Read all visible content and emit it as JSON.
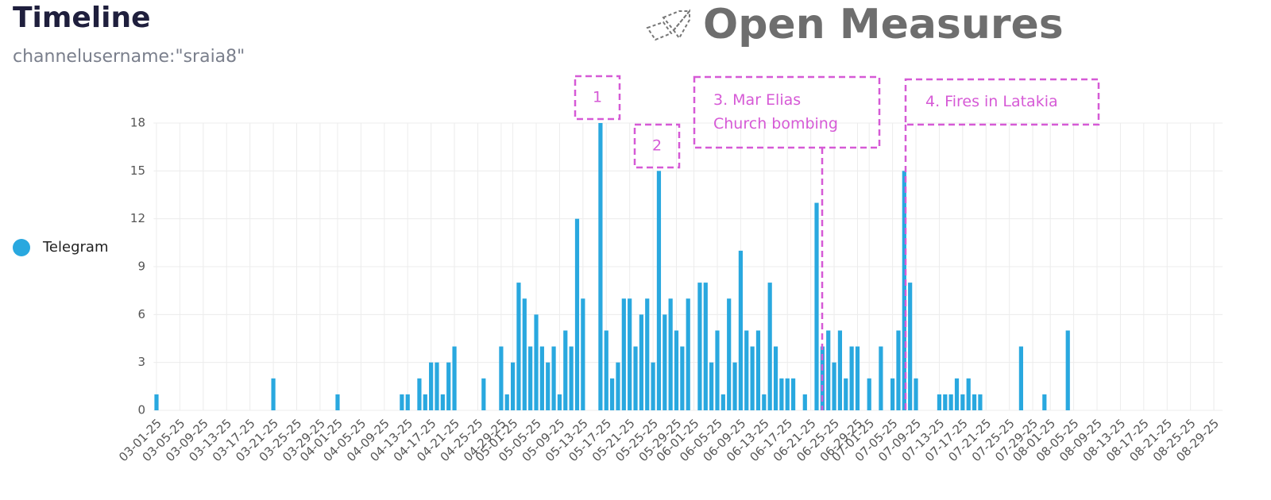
{
  "chart_data": {
    "type": "bar",
    "title": "Timeline",
    "subtitle": "channelusername:\"sraia8\"",
    "logo": "Open Measures",
    "categories": [
      "03-01-25",
      null,
      null,
      null,
      "03-05-25",
      null,
      null,
      null,
      "03-09-25",
      null,
      null,
      null,
      "03-13-25",
      null,
      null,
      null,
      "03-17-25",
      null,
      null,
      null,
      "03-21-25",
      null,
      null,
      null,
      "03-25-25",
      null,
      null,
      null,
      "03-29-25",
      null,
      null,
      "04-01-25",
      null,
      null,
      null,
      "04-05-25",
      null,
      null,
      null,
      "04-09-25",
      null,
      null,
      null,
      "04-13-25",
      null,
      null,
      null,
      "04-17-25",
      null,
      null,
      null,
      "04-21-25",
      null,
      null,
      null,
      "04-25-25",
      null,
      null,
      null,
      "04-29-25",
      null,
      "05-01-25",
      null,
      null,
      null,
      "05-05-25",
      null,
      null,
      null,
      "05-09-25",
      null,
      null,
      null,
      "05-13-25",
      null,
      null,
      null,
      "05-17-25",
      null,
      null,
      null,
      "05-21-25",
      null,
      null,
      null,
      "05-25-25",
      null,
      null,
      null,
      "05-29-25",
      null,
      null,
      "06-01-25",
      null,
      null,
      null,
      "06-05-25",
      null,
      null,
      null,
      "06-09-25",
      null,
      null,
      null,
      "06-13-25",
      null,
      null,
      null,
      "06-17-25",
      null,
      null,
      null,
      "06-21-25",
      null,
      null,
      null,
      "06-25-25",
      null,
      null,
      null,
      "06-29-25",
      null,
      "07-01-25",
      null,
      null,
      null,
      "07-05-25",
      null,
      null,
      null,
      "07-09-25",
      null,
      null,
      null,
      "07-13-25",
      null,
      null,
      null,
      "07-17-25",
      null,
      null,
      null,
      "07-21-25",
      null,
      null,
      null,
      "07-25-25",
      null,
      null,
      null,
      "07-29-25",
      null,
      null,
      "08-01-25",
      null,
      null,
      null,
      "08-05-25",
      null,
      null,
      null,
      "08-09-25",
      null,
      null,
      null,
      "08-13-25",
      null,
      null,
      null,
      "08-17-25",
      null,
      null,
      null,
      "08-21-25",
      null,
      null,
      null,
      "08-25-25",
      null,
      null,
      null,
      "08-29-25",
      null
    ],
    "series": [
      {
        "name": "Telegram",
        "color": "#29a8df",
        "values": [
          1,
          0,
          0,
          0,
          0,
          0,
          0,
          0,
          0,
          0,
          0,
          0,
          0,
          0,
          0,
          0,
          0,
          0,
          0,
          0,
          2,
          0,
          0,
          0,
          0,
          0,
          0,
          0,
          0,
          0,
          0,
          1,
          0,
          0,
          0,
          0,
          0,
          0,
          0,
          0,
          0,
          0,
          1,
          1,
          0,
          2,
          1,
          3,
          3,
          1,
          3,
          4,
          0,
          0,
          0,
          0,
          2,
          0,
          0,
          4,
          1,
          3,
          8,
          7,
          4,
          6,
          4,
          3,
          4,
          1,
          5,
          4,
          12,
          7,
          0,
          0,
          18,
          5,
          2,
          3,
          7,
          7,
          4,
          6,
          7,
          3,
          15,
          6,
          7,
          5,
          4,
          7,
          0,
          8,
          8,
          3,
          5,
          1,
          7,
          3,
          10,
          5,
          4,
          5,
          1,
          8,
          4,
          2,
          2,
          2,
          0,
          1,
          0,
          13,
          4,
          5,
          3,
          5,
          2,
          4,
          4,
          0,
          2,
          0,
          4,
          0,
          2,
          5,
          15,
          8,
          2,
          0,
          0,
          0,
          1,
          1,
          1,
          2,
          1,
          2,
          1,
          1,
          0,
          0,
          0,
          0,
          0,
          0,
          4,
          0,
          0,
          0,
          1,
          0,
          0,
          0,
          5,
          0,
          0,
          0,
          0,
          0,
          0,
          0,
          0,
          0,
          0,
          0,
          0,
          0,
          0,
          0,
          0,
          0,
          0,
          0,
          0,
          0,
          0,
          0,
          0,
          0,
          0
        ]
      }
    ],
    "ylim": [
      0,
      18
    ],
    "yticks": [
      0,
      3,
      6,
      9,
      12,
      15,
      18
    ],
    "grid": true,
    "annotations": [
      {
        "lines": [
          "1"
        ]
      },
      {
        "lines": [
          "2"
        ]
      },
      {
        "lines": [
          "3. Mar Elias",
          "Church bombing"
        ]
      },
      {
        "lines": [
          "4. Fires in Latakia"
        ]
      }
    ]
  }
}
